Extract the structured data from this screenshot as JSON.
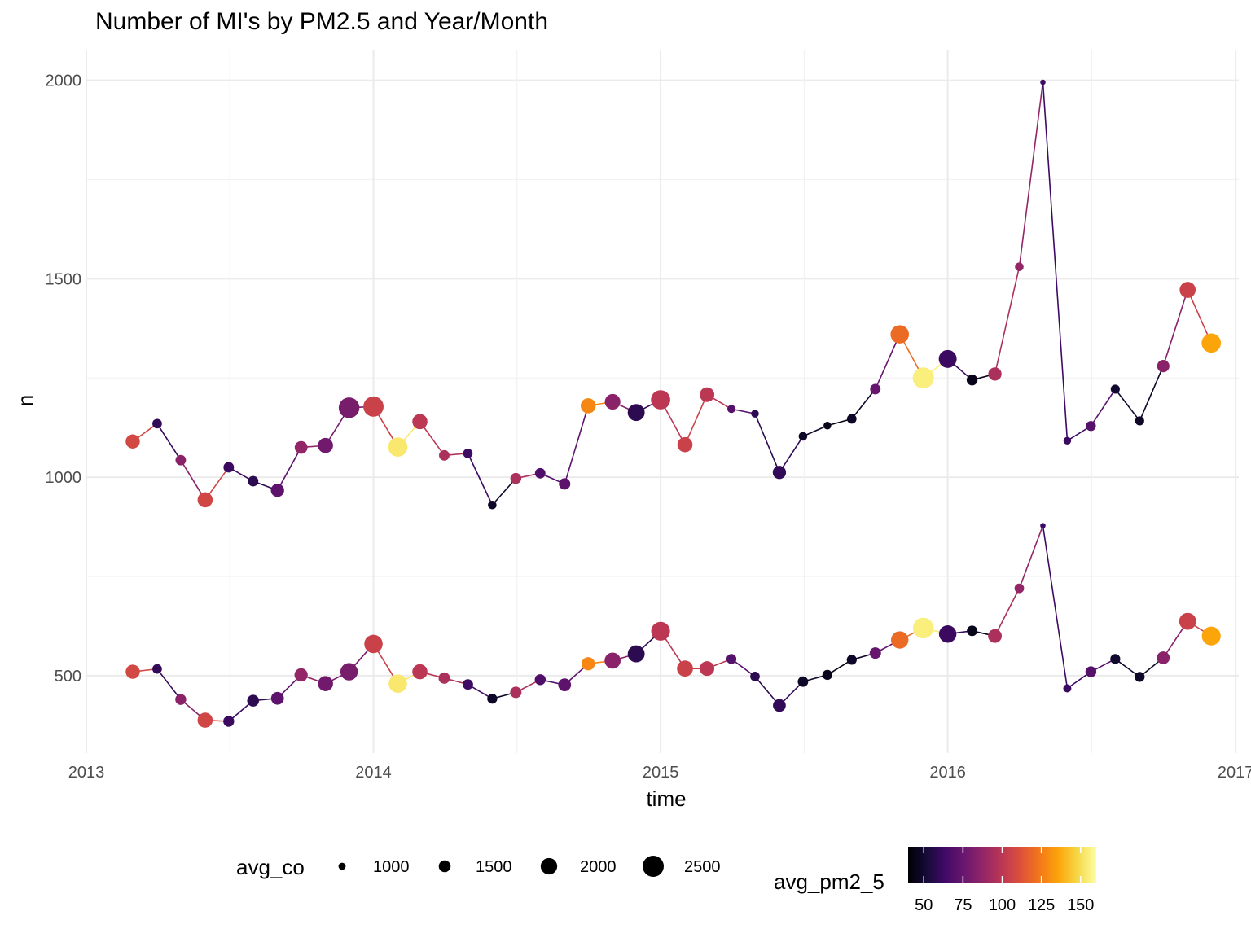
{
  "chart_data": {
    "type": "line",
    "title": "Number of MI's by PM2.5 and Year/Month",
    "xlabel": "time",
    "ylabel": "n",
    "x_ticks": [
      "2013",
      "2014",
      "2015",
      "2016",
      "2017"
    ],
    "y_ticks": [
      "500",
      "1000",
      "1500",
      "2000"
    ],
    "xlim": [
      "2013-01-01",
      "2017-01-05"
    ],
    "ylim": [
      305,
      2075
    ],
    "grid": true,
    "legend_position": "bottom",
    "x": [
      "2013-03",
      "2013-04",
      "2013-05",
      "2013-06",
      "2013-07",
      "2013-08",
      "2013-09",
      "2013-10",
      "2013-11",
      "2013-12",
      "2014-01",
      "2014-02",
      "2014-03",
      "2014-04",
      "2014-05",
      "2014-06",
      "2014-07",
      "2014-08",
      "2014-09",
      "2014-10",
      "2014-11",
      "2014-12",
      "2015-01",
      "2015-02",
      "2015-03",
      "2015-04",
      "2015-05",
      "2015-06",
      "2015-07",
      "2015-08",
      "2015-09",
      "2015-10",
      "2015-11",
      "2015-12",
      "2016-01",
      "2016-02",
      "2016-03",
      "2016-04",
      "2016-05",
      "2016-06",
      "2016-07",
      "2016-08",
      "2016-09",
      "2016-10",
      "2016-11",
      "2016-12"
    ],
    "series": [
      {
        "values": [
          1090,
          1135,
          1043,
          943,
          1025,
          990,
          967,
          1075,
          1080,
          1175,
          1178,
          1076,
          1140,
          1055,
          1060,
          930,
          997,
          1010,
          983,
          1180,
          1190,
          1163,
          1195,
          1082,
          1208,
          1172,
          1160,
          1012,
          1103,
          1130,
          1147,
          1222,
          1360,
          1250,
          1298,
          1245,
          1260,
          1530,
          1995,
          1092,
          1129,
          1222,
          1142,
          1280,
          1472,
          1338
        ],
        "avg_co": [
          1750,
          1250,
          1350,
          1850,
          1350,
          1350,
          1650,
          1600,
          1850,
          2450,
          2400,
          2300,
          1850,
          1350,
          1250,
          1150,
          1400,
          1350,
          1450,
          1850,
          1900,
          2050,
          2300,
          1850,
          1800,
          1100,
          1050,
          1650,
          1150,
          1050,
          1250,
          1350,
          2200,
          2500,
          2150,
          1400,
          1650,
          1150,
          800,
          1050,
          1300,
          1200,
          1200,
          1550,
          1950,
          2300
        ],
        "avg_pm2_5": [
          108,
          60,
          85,
          107,
          62,
          58,
          72,
          88,
          78,
          80,
          105,
          153,
          100,
          95,
          63,
          48,
          95,
          68,
          72,
          128,
          85,
          58,
          100,
          105,
          100,
          70,
          58,
          60,
          48,
          45,
          48,
          75,
          120,
          155,
          62,
          45,
          95,
          88,
          63,
          62,
          70,
          50,
          48,
          85,
          105,
          136
        ]
      },
      {
        "values": [
          510,
          517,
          440,
          388,
          385,
          437,
          443,
          502,
          480,
          510,
          580,
          480,
          510,
          494,
          478,
          442,
          458,
          490,
          477,
          530,
          538,
          555,
          612,
          518,
          518,
          542,
          498,
          425,
          485,
          502,
          540,
          557,
          590,
          620,
          605,
          613,
          600,
          720,
          878,
          468,
          510,
          542,
          497,
          545,
          637,
          600
        ],
        "avg_co": [
          1750,
          1250,
          1400,
          1850,
          1400,
          1500,
          1600,
          1650,
          1850,
          2100,
          2200,
          2200,
          1850,
          1450,
          1350,
          1300,
          1450,
          1400,
          1600,
          1650,
          1950,
          2050,
          2250,
          1950,
          1800,
          1300,
          1250,
          1600,
          1350,
          1300,
          1300,
          1450,
          2100,
          2450,
          2100,
          1350,
          1700,
          1250,
          800,
          1100,
          1400,
          1300,
          1300,
          1600,
          2050,
          2250
        ],
        "avg_pm2_5": [
          108,
          60,
          85,
          107,
          62,
          58,
          72,
          88,
          78,
          80,
          105,
          153,
          100,
          95,
          63,
          48,
          95,
          68,
          72,
          128,
          85,
          58,
          100,
          105,
          100,
          70,
          58,
          60,
          48,
          45,
          48,
          75,
          120,
          155,
          62,
          45,
          95,
          88,
          63,
          62,
          70,
          50,
          48,
          85,
          105,
          136
        ]
      }
    ],
    "size_legend": {
      "title": "avg_co",
      "breaks": [
        1000,
        1500,
        2000,
        2500
      ],
      "labels": [
        "1000",
        "1500",
        "2000",
        "2500"
      ]
    },
    "color_legend": {
      "title": "avg_pm2_5",
      "palette": "inferno",
      "range": [
        40,
        160
      ],
      "breaks": [
        50,
        75,
        100,
        125,
        150
      ],
      "labels": [
        "50",
        "75",
        "100",
        "125",
        "150"
      ]
    }
  }
}
